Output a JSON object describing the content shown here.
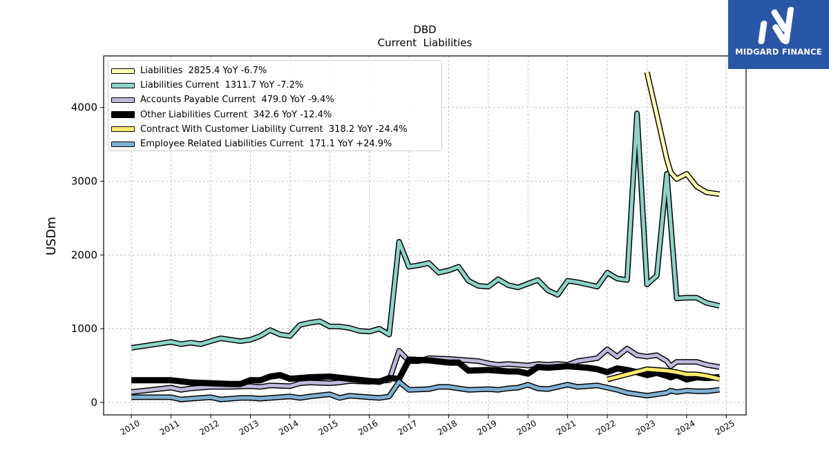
{
  "chart_data": {
    "type": "line",
    "title": "DBD",
    "subtitle": "Current  Liabilities",
    "ylabel": "USDm",
    "xlim": [
      2009.3,
      2025.5
    ],
    "ylim": [
      -170,
      4700
    ],
    "yticks": [
      0,
      1000,
      2000,
      3000,
      4000
    ],
    "xticks": [
      2010,
      2011,
      2012,
      2013,
      2014,
      2015,
      2016,
      2017,
      2018,
      2019,
      2020,
      2021,
      2022,
      2023,
      2024,
      2025
    ],
    "grid": true,
    "legend_position": "upper-left",
    "series": [
      {
        "name": "Liabilities",
        "label": "Liabilities  2825.4 YoY -6.7%",
        "color": "#ffffb3",
        "width": 5,
        "x": [
          2023.0,
          2023.25,
          2023.5,
          2023.6,
          2023.75,
          2024.0,
          2024.25,
          2024.5,
          2024.83
        ],
        "y": [
          4480,
          3900,
          3300,
          3120,
          3030,
          3100,
          2930,
          2850,
          2825
        ]
      },
      {
        "name": "Liabilities Current",
        "label": "Liabilities Current  1311.7 YoY -7.2%",
        "color": "#8dd3c7",
        "width": 5,
        "x": [
          2010.0,
          2010.25,
          2010.5,
          2010.75,
          2011.0,
          2011.25,
          2011.5,
          2011.75,
          2012.0,
          2012.25,
          2012.5,
          2012.75,
          2013.0,
          2013.25,
          2013.5,
          2013.75,
          2014.0,
          2014.25,
          2014.5,
          2014.75,
          2015.0,
          2015.25,
          2015.5,
          2015.75,
          2016.0,
          2016.25,
          2016.5,
          2016.75,
          2017.0,
          2017.25,
          2017.5,
          2017.75,
          2018.0,
          2018.25,
          2018.5,
          2018.75,
          2019.0,
          2019.25,
          2019.5,
          2019.75,
          2020.0,
          2020.25,
          2020.5,
          2020.75,
          2021.0,
          2021.25,
          2021.5,
          2021.75,
          2022.0,
          2022.25,
          2022.5,
          2022.75,
          2023.0,
          2023.25,
          2023.5,
          2023.75,
          2024.0,
          2024.25,
          2024.5,
          2024.83
        ],
        "y": [
          740,
          760,
          780,
          800,
          820,
          790,
          810,
          790,
          830,
          870,
          850,
          830,
          850,
          900,
          980,
          920,
          900,
          1050,
          1080,
          1100,
          1030,
          1030,
          1010,
          970,
          960,
          1000,
          920,
          2180,
          1840,
          1860,
          1890,
          1760,
          1790,
          1840,
          1650,
          1580,
          1570,
          1670,
          1590,
          1560,
          1610,
          1660,
          1520,
          1460,
          1650,
          1630,
          1600,
          1570,
          1760,
          1680,
          1660,
          3920,
          1600,
          1720,
          3100,
          1410,
          1420,
          1420,
          1350,
          1310
        ]
      },
      {
        "name": "Accounts Payable Current",
        "label": "Accounts Payable Current  479.0 YoY -9.4%",
        "color": "#bebada",
        "width": 5,
        "x": [
          2010.0,
          2010.5,
          2011.0,
          2011.25,
          2011.5,
          2012.0,
          2012.5,
          2013.0,
          2013.25,
          2013.5,
          2014.0,
          2014.25,
          2014.5,
          2015.0,
          2015.25,
          2015.5,
          2016.0,
          2016.5,
          2016.75,
          2017.0,
          2017.25,
          2017.5,
          2018.0,
          2018.5,
          2018.75,
          2019.0,
          2019.25,
          2019.5,
          2020.0,
          2020.25,
          2020.5,
          2020.75,
          2021.0,
          2021.25,
          2021.5,
          2021.75,
          2022.0,
          2022.25,
          2022.5,
          2022.75,
          2023.0,
          2023.25,
          2023.5,
          2023.6,
          2023.75,
          2024.0,
          2024.25,
          2024.5,
          2024.83
        ],
        "y": [
          140,
          170,
          200,
          170,
          190,
          210,
          210,
          220,
          210,
          230,
          220,
          260,
          270,
          260,
          270,
          290,
          280,
          300,
          700,
          560,
          560,
          600,
          590,
          570,
          560,
          530,
          510,
          520,
          500,
          520,
          510,
          520,
          510,
          560,
          580,
          600,
          720,
          620,
          730,
          640,
          620,
          640,
          560,
          490,
          550,
          550,
          550,
          510,
          479
        ]
      },
      {
        "name": "Other Liabilities Current",
        "label": "Other Liabilities Current  342.6 YoY -12.4%",
        "color": "#000000",
        "width": 9,
        "x": [
          2010.0,
          2011.0,
          2011.5,
          2012.0,
          2012.5,
          2012.75,
          2013.0,
          2013.25,
          2013.5,
          2013.75,
          2014.0,
          2014.25,
          2014.5,
          2015.0,
          2015.5,
          2016.0,
          2016.25,
          2016.5,
          2016.75,
          2017.0,
          2017.5,
          2018.0,
          2018.25,
          2018.5,
          2019.0,
          2019.5,
          2019.75,
          2020.0,
          2020.25,
          2020.5,
          2021.0,
          2021.5,
          2021.75,
          2022.0,
          2022.25,
          2022.5,
          2022.75,
          2023.0,
          2023.25,
          2023.5,
          2023.6,
          2023.75,
          2024.0,
          2024.25,
          2024.5,
          2024.83
        ],
        "y": [
          300,
          300,
          270,
          260,
          250,
          250,
          300,
          300,
          350,
          370,
          320,
          330,
          340,
          350,
          320,
          290,
          280,
          330,
          320,
          580,
          570,
          540,
          540,
          430,
          440,
          420,
          420,
          390,
          480,
          470,
          490,
          470,
          450,
          410,
          460,
          440,
          410,
          370,
          400,
          360,
          340,
          370,
          310,
          340,
          330,
          343
        ]
      },
      {
        "name": "Contract With Customer Liability Current",
        "label": "Contract With Customer Liability Current  318.2 YoY -24.4%",
        "color": "#ffed6f",
        "width": 5,
        "x": [
          2022.0,
          2022.5,
          2023.0,
          2023.5,
          2023.75,
          2024.0,
          2024.25,
          2024.5,
          2024.83
        ],
        "y": [
          310,
          380,
          450,
          430,
          410,
          380,
          380,
          360,
          318
        ]
      },
      {
        "name": "Employee Related Liabilities Current",
        "label": "Employee Related Liabilities Current  171.1 YoY +24.9%",
        "color": "#80b1d3",
        "width": 5,
        "x": [
          2010.0,
          2011.0,
          2011.25,
          2011.5,
          2012.0,
          2012.25,
          2012.75,
          2013.0,
          2013.25,
          2013.5,
          2014.0,
          2014.25,
          2014.5,
          2015.0,
          2015.25,
          2015.5,
          2016.0,
          2016.25,
          2016.5,
          2016.75,
          2017.0,
          2017.5,
          2017.75,
          2018.0,
          2018.5,
          2019.0,
          2019.25,
          2019.5,
          2019.75,
          2020.0,
          2020.25,
          2020.5,
          2021.0,
          2021.25,
          2021.5,
          2021.75,
          2022.0,
          2022.25,
          2022.5,
          2022.75,
          2023.0,
          2023.25,
          2023.5,
          2023.6,
          2023.75,
          2024.0,
          2024.25,
          2024.5,
          2024.83
        ],
        "y": [
          70,
          70,
          40,
          50,
          70,
          40,
          60,
          60,
          50,
          60,
          80,
          60,
          80,
          110,
          60,
          90,
          70,
          60,
          80,
          280,
          170,
          180,
          210,
          210,
          170,
          180,
          170,
          190,
          200,
          240,
          190,
          180,
          240,
          210,
          220,
          230,
          200,
          170,
          130,
          110,
          90,
          110,
          130,
          160,
          140,
          160,
          150,
          150,
          171
        ]
      }
    ]
  }
}
